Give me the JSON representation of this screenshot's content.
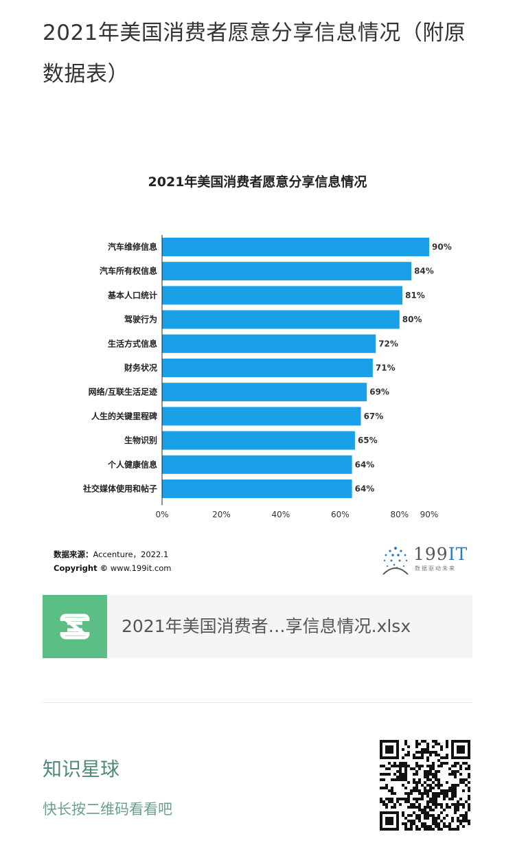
{
  "article": {
    "title": "2021年美国消费者愿意分享信息情况（附原数据表）"
  },
  "chart_data": {
    "type": "bar",
    "orientation": "horizontal",
    "title": "2021年美国消费者愿意分享信息情况",
    "categories": [
      "汽车维修信息",
      "汽车所有权信息",
      "基本人口统计",
      "驾驶行为",
      "生活方式信息",
      "财务状况",
      "网络/互联生活足迹",
      "人生的关键里程碑",
      "生物识别",
      "个人健康信息",
      "社交媒体使用和帖子"
    ],
    "values": [
      90,
      84,
      81,
      80,
      72,
      71,
      69,
      67,
      65,
      64,
      64
    ],
    "value_labels": [
      "90%",
      "84%",
      "81%",
      "80%",
      "72%",
      "71%",
      "69%",
      "67%",
      "65%",
      "64%",
      "64%"
    ],
    "xticks": [
      0,
      20,
      40,
      60,
      80,
      90
    ],
    "xtick_labels": [
      "0%",
      "20%",
      "40%",
      "60%",
      "80%",
      "90%"
    ],
    "xlim": [
      0,
      90
    ],
    "bar_color": "#1aa0e8",
    "grid": false,
    "legend": "none"
  },
  "source": {
    "label": "数据来源：",
    "text": "Accenture，2022.1",
    "copyright_label": "Copyright ©",
    "copyright_text": "www.199it.com"
  },
  "logo": {
    "brand_num": "199",
    "brand_it": "IT",
    "tagline": "数据驱动未来"
  },
  "attachment": {
    "filename": "2021年美国消费者…享信息情况.xlsx",
    "icon": "spreadsheet-s-icon",
    "icon_color": "#5bbf85"
  },
  "promo": {
    "title": "知识星球",
    "subtitle": "快长按二维码看看吧",
    "qr_icon": "qr-code-icon"
  },
  "colors": {
    "promo_title": "#4f8a78",
    "promo_sub": "#6b9f8d"
  }
}
